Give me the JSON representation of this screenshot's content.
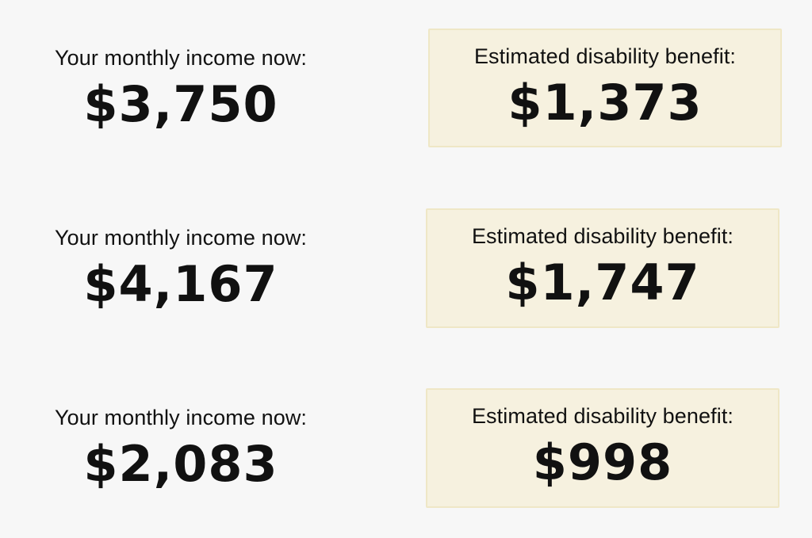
{
  "rows": [
    {
      "income_label": "Your monthly income now:",
      "income_value": "$3,750",
      "benefit_label": "Estimated disability benefit:",
      "benefit_value": "$1,373"
    },
    {
      "income_label": "Your monthly income now:",
      "income_value": "$4,167",
      "benefit_label": "Estimated disability benefit:",
      "benefit_value": "$1,747"
    },
    {
      "income_label": "Your monthly income now:",
      "income_value": "$2,083",
      "benefit_label": "Estimated disability benefit:",
      "benefit_value": "$998"
    }
  ],
  "colors": {
    "background": "#f7f7f7",
    "benefit_box_fill": "#f6f1df",
    "benefit_box_border": "#efe7c6",
    "text": "#111111"
  }
}
